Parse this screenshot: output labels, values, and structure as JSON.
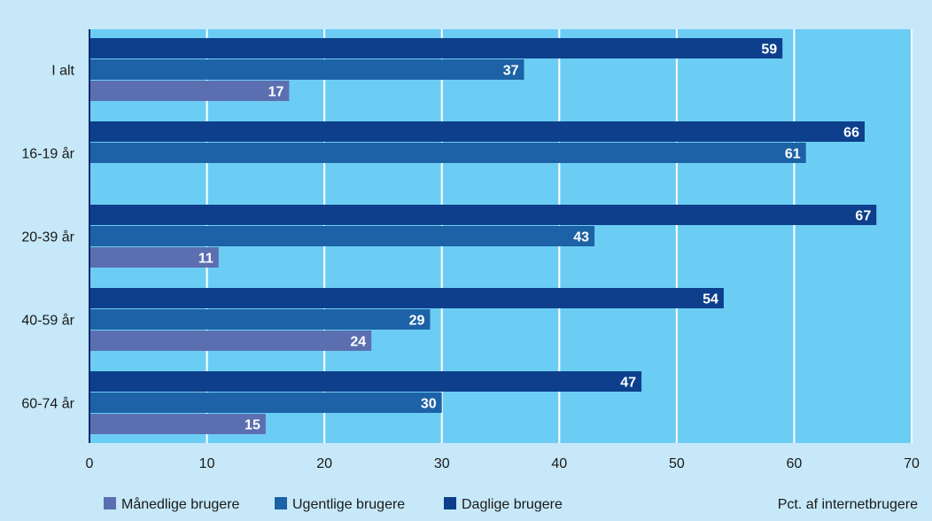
{
  "chart_data": {
    "type": "bar",
    "orientation": "horizontal",
    "categories": [
      "I alt",
      "16-19 år",
      "20-39 år",
      "40-59 år",
      "60-74 år"
    ],
    "series": [
      {
        "name": "Daglige brugere",
        "values": [
          59,
          66,
          67,
          54,
          47
        ],
        "color": "#0d3f8c"
      },
      {
        "name": "Ugentlige brugere",
        "values": [
          37,
          61,
          43,
          29,
          30
        ],
        "color": "#1d62a6"
      },
      {
        "name": "Månedlige brugere",
        "values": [
          17,
          null,
          11,
          24,
          15
        ],
        "color": "#5b6fb0"
      }
    ],
    "legend_order": [
      "Månedlige brugere",
      "Ugentlige brugere",
      "Daglige brugere"
    ],
    "xlim": [
      0,
      70
    ],
    "xticks": [
      0,
      10,
      20,
      30,
      40,
      50,
      60,
      70
    ],
    "xlabel": "Pct. af internetbrugere",
    "title": "",
    "grid": true,
    "legend_position": "bottom-left",
    "colors": {
      "page_background": "#c6e8f8",
      "plot_background": "#6ccdf4",
      "gridline": "#ffffff",
      "axis": "#0d2a6e"
    }
  }
}
